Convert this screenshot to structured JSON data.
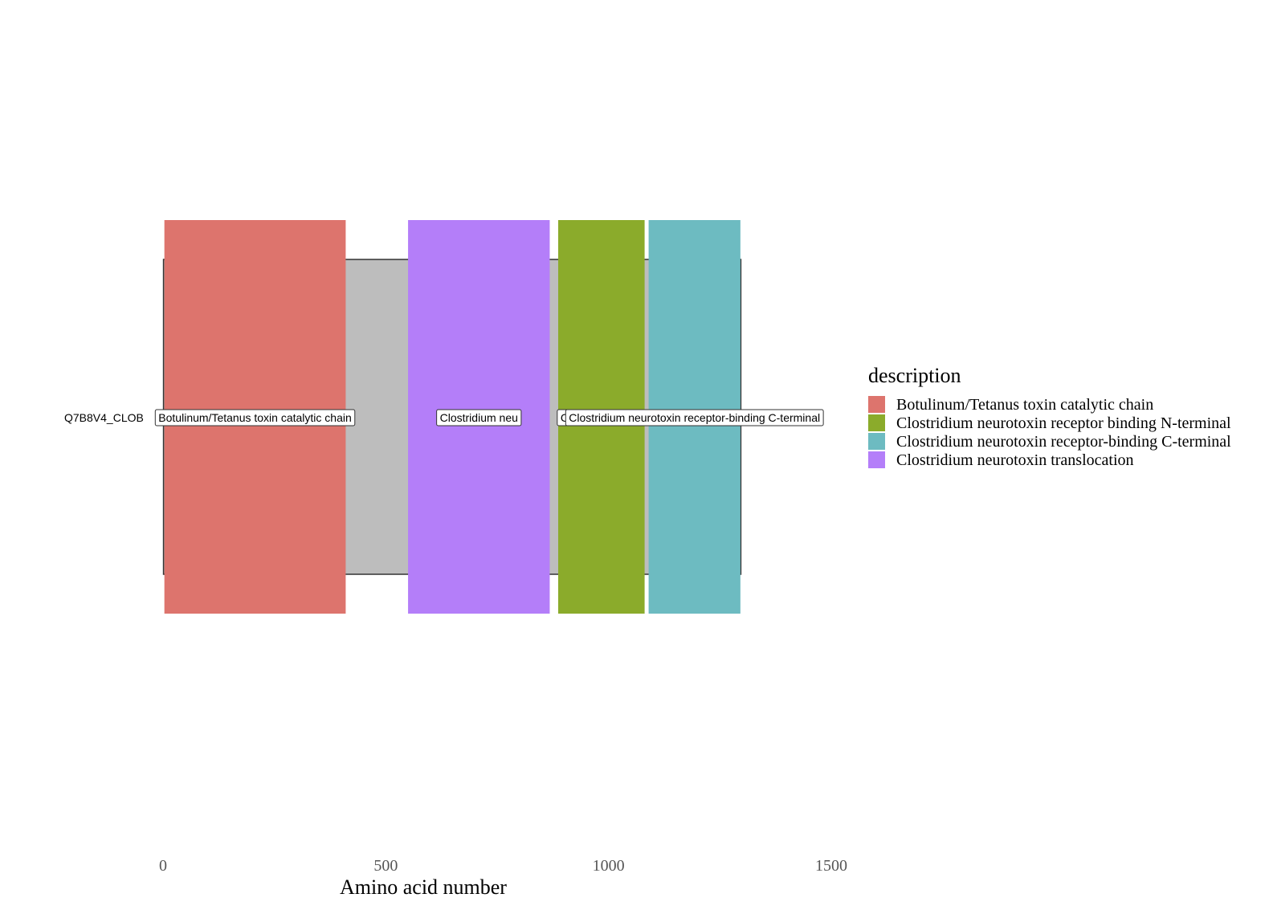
{
  "chart_data": {
    "type": "domain-diagram",
    "xlabel": "Amino acid number",
    "xlim": [
      0,
      1500
    ],
    "xticks": [
      0,
      500,
      1000,
      1500
    ],
    "protein": {
      "label": "Q7B8V4_CLOB",
      "start": 1,
      "end": 1297,
      "color": "#bdbdbd"
    },
    "legend": {
      "title": "description",
      "placement": "right"
    },
    "domains": [
      {
        "description": "Botulinum/Tetanus toxin catalytic chain",
        "start": 3,
        "end": 410,
        "color": "#dd746d",
        "label": "Botulinum/Tetanus toxin catalytic chain"
      },
      {
        "description": "Clostridium neurotoxin translocation",
        "start": 550,
        "end": 868,
        "color": "#b47ef9",
        "label": "Clostridium neu"
      },
      {
        "description": "Clostridium neurotoxin receptor binding N-terminal",
        "start": 887,
        "end": 1081,
        "color": "#8bab2b",
        "label": "Clostridium neur"
      },
      {
        "description": "Clostridium neurotoxin receptor-binding C-terminal",
        "start": 1090,
        "end": 1296,
        "color": "#6dbbc1",
        "label": "Clostridium neurotoxin receptor-binding C-terminal"
      }
    ],
    "legend_entries": [
      {
        "label": "Botulinum/Tetanus toxin catalytic chain",
        "color": "#dd746d"
      },
      {
        "label": "Clostridium neurotoxin receptor binding N-terminal",
        "color": "#8bab2b"
      },
      {
        "label": "Clostridium neurotoxin receptor-binding C-terminal",
        "color": "#6dbbc1"
      },
      {
        "label": "Clostridium neurotoxin translocation",
        "color": "#b47ef9"
      }
    ]
  }
}
